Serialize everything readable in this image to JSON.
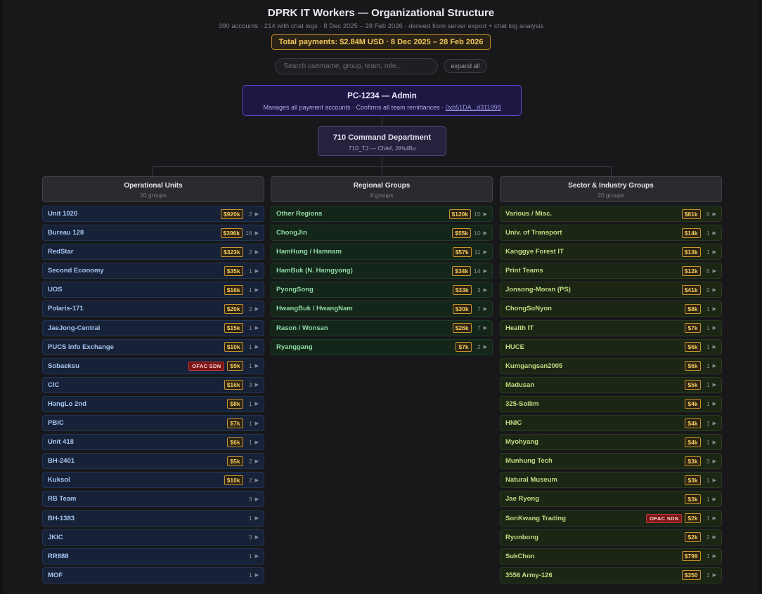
{
  "header": {
    "title": "DPRK IT Workers — Organizational Structure",
    "subtitle": "390 accounts  ·  214 with chat logs  ·  8 Dec 2025 – 28 Feb 2026  ·  derived from server export + chat log analysis",
    "total": "Total payments: $2.84M USD  ·  8 Dec 2025 – 28 Feb 2026"
  },
  "search": {
    "placeholder": "Search username, group, team, role...",
    "expand_label": "expand all"
  },
  "admin": {
    "name": "PC-1234 — Admin",
    "desc": "Manages all payment accounts · Confirms all team remittances · ",
    "address": "0xb51DA...d311998"
  },
  "command": {
    "name": "710 Command Department",
    "sub": "710_TJ — Chief, JiHuiBu"
  },
  "columns": [
    {
      "name": "Operational Units",
      "count": "20 groups",
      "style": "op",
      "items": [
        {
          "label": "Unit 1020",
          "pay": "$920k",
          "count": "2"
        },
        {
          "label": "Bureau 128",
          "pay": "$396k",
          "count": "16"
        },
        {
          "label": "RedStar",
          "pay": "$323k",
          "count": "2"
        },
        {
          "label": "Second Economy",
          "pay": "$35k",
          "count": "1"
        },
        {
          "label": "UOS",
          "pay": "$16k",
          "count": "1"
        },
        {
          "label": "Polaris-171",
          "pay": "$20k",
          "count": "2"
        },
        {
          "label": "JaeJong-Central",
          "pay": "$15k",
          "count": "1"
        },
        {
          "label": "PUCS Info Exchange",
          "pay": "$10k",
          "count": "1"
        },
        {
          "label": "Sobaeksu",
          "ofac": "OFAC SDN",
          "pay": "$9k",
          "count": "1"
        },
        {
          "label": "CIC",
          "pay": "$16k",
          "count": "3"
        },
        {
          "label": "HangLo 2nd",
          "pay": "$8k",
          "count": "1"
        },
        {
          "label": "PBIC",
          "pay": "$7k",
          "count": "1"
        },
        {
          "label": "Unit 418",
          "pay": "$6k",
          "count": "1"
        },
        {
          "label": "BH-2401",
          "pay": "$5k",
          "count": "2"
        },
        {
          "label": "Kuksol",
          "pay": "$10k",
          "count": "2"
        },
        {
          "label": "RB Team",
          "count": "3"
        },
        {
          "label": "BH-1383",
          "count": "1"
        },
        {
          "label": "JKIC",
          "count": "3"
        },
        {
          "label": "RR888",
          "count": "1"
        },
        {
          "label": "MOF",
          "count": "1"
        }
      ]
    },
    {
      "name": "Regional Groups",
      "count": "8 groups",
      "style": "rg",
      "items": [
        {
          "label": "Other Regions",
          "pay": "$120k",
          "count": "10"
        },
        {
          "label": "ChongJin",
          "pay": "$55k",
          "count": "10"
        },
        {
          "label": "HamHung / Hamnam",
          "pay": "$57k",
          "count": "11"
        },
        {
          "label": "HamBuk (N. Hamgyong)",
          "pay": "$34k",
          "count": "14"
        },
        {
          "label": "PyongSong",
          "pay": "$33k",
          "count": "3"
        },
        {
          "label": "HwangBuk / HwangNam",
          "pay": "$30k",
          "count": "7"
        },
        {
          "label": "Rason / Wonsan",
          "pay": "$26k",
          "count": "7"
        },
        {
          "label": "Ryanggang",
          "pay": "$7k",
          "count": "2"
        }
      ]
    },
    {
      "name": "Sector & Industry Groups",
      "count": "20 groups",
      "style": "sc",
      "items": [
        {
          "label": "Various / Misc.",
          "pay": "$81k",
          "count": "6"
        },
        {
          "label": "Univ. of Transport",
          "pay": "$14k",
          "count": "1"
        },
        {
          "label": "Kanggye Forest IT",
          "pay": "$13k",
          "count": "1"
        },
        {
          "label": "Print Teams",
          "pay": "$12k",
          "count": "5"
        },
        {
          "label": "Jonsong-Moran (PS)",
          "pay": "$41k",
          "count": "2"
        },
        {
          "label": "ChongSoNyon",
          "pay": "$8k",
          "count": "1"
        },
        {
          "label": "Health IT",
          "pay": "$7k",
          "count": "1"
        },
        {
          "label": "HUCE",
          "pay": "$6k",
          "count": "1"
        },
        {
          "label": "Kumgangsan2005",
          "pay": "$6k",
          "count": "1"
        },
        {
          "label": "Madusan",
          "pay": "$5k",
          "count": "1"
        },
        {
          "label": "325-Sollim",
          "pay": "$4k",
          "count": "1"
        },
        {
          "label": "HNIC",
          "pay": "$4k",
          "count": "1"
        },
        {
          "label": "Myohyang",
          "pay": "$4k",
          "count": "1"
        },
        {
          "label": "Munhung Tech",
          "pay": "$3k",
          "count": "3"
        },
        {
          "label": "Natural Museum",
          "pay": "$3k",
          "count": "1"
        },
        {
          "label": "Jae Ryong",
          "pay": "$3k",
          "count": "1"
        },
        {
          "label": "SonKwang Trading",
          "ofac": "OFAC SDN",
          "pay": "$2k",
          "count": "1"
        },
        {
          "label": "Ryonbong",
          "pay": "$2k",
          "count": "2"
        },
        {
          "label": "SukChon",
          "pay": "$799",
          "count": "1"
        },
        {
          "label": "3556 Army-126",
          "pay": "$350",
          "count": "1"
        }
      ]
    }
  ]
}
